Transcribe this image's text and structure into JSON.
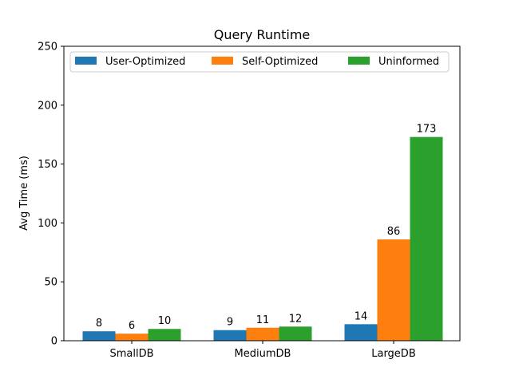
{
  "chart_data": {
    "type": "bar",
    "title": "Query Runtime",
    "xlabel": "",
    "ylabel": "Avg Time (ms)",
    "categories": [
      "SmallDB",
      "MediumDB",
      "LargeDB"
    ],
    "series": [
      {
        "name": "User-Optimized",
        "color": "#1f77b4",
        "values": [
          8,
          9,
          14
        ]
      },
      {
        "name": "Self-Optimized",
        "color": "#ff7f0e",
        "values": [
          6,
          11,
          86
        ]
      },
      {
        "name": "Uninformed",
        "color": "#2ca02c",
        "values": [
          10,
          12,
          173
        ]
      }
    ],
    "ylim": [
      0,
      250
    ],
    "yticks": [
      0,
      50,
      100,
      150,
      200,
      250
    ],
    "grid": false,
    "legend_position": "top"
  }
}
